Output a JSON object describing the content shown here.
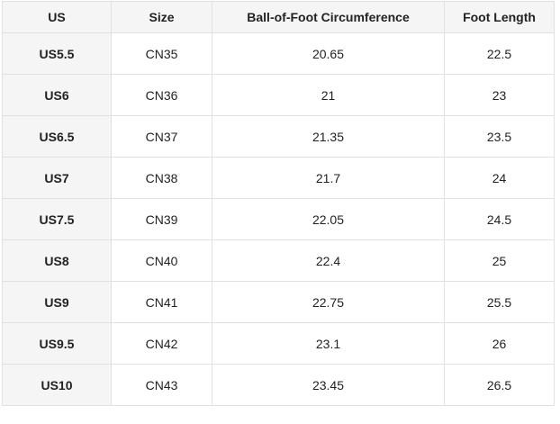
{
  "chart_data": {
    "type": "table",
    "columns": [
      "US",
      "Size",
      "Ball-of-Foot Circumference",
      "Foot Length"
    ],
    "rows": [
      [
        "US5.5",
        "CN35",
        "20.65",
        "22.5"
      ],
      [
        "US6",
        "CN36",
        "21",
        "23"
      ],
      [
        "US6.5",
        "CN37",
        "21.35",
        "23.5"
      ],
      [
        "US7",
        "CN38",
        "21.7",
        "24"
      ],
      [
        "US7.5",
        "CN39",
        "22.05",
        "24.5"
      ],
      [
        "US8",
        "CN40",
        "22.4",
        "25"
      ],
      [
        "US9",
        "CN41",
        "22.75",
        "25.5"
      ],
      [
        "US9.5",
        "CN42",
        "23.1",
        "26"
      ],
      [
        "US10",
        "CN43",
        "23.45",
        "26.5"
      ]
    ]
  },
  "colors": {
    "shade_bg": "#f5f5f5",
    "border": "#e1e1e1",
    "text": "#222222",
    "cell_bg": "#ffffff"
  }
}
